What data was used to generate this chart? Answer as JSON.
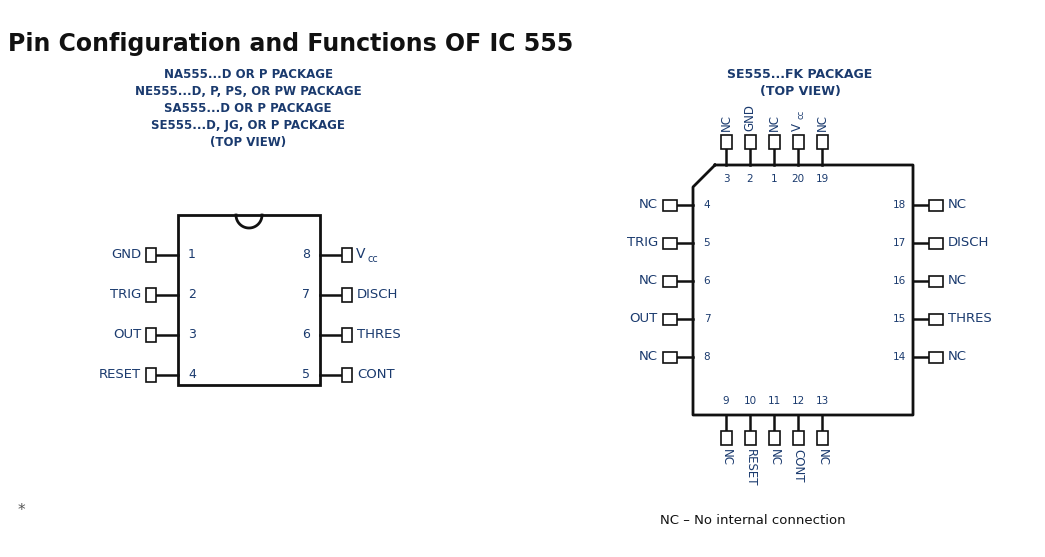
{
  "title": "Pin Configuration and Functions OF IC 555",
  "title_fontsize": 17,
  "bg_color": "#ffffff",
  "text_color": "#1a3a6e",
  "black": "#111111",
  "left_subtitle_lines": [
    "NA555...D OR P PACKAGE",
    "NE555...D, P, PS, OR PW PACKAGE",
    "SA555...D OR P PACKAGE",
    "SE555...D, JG, OR P PACKAGE",
    "(TOP VIEW)"
  ],
  "right_subtitle_lines": [
    "SE555...FK PACKAGE",
    "(TOP VIEW)"
  ],
  "left_pins_left": [
    {
      "num": "1",
      "name": "GND"
    },
    {
      "num": "2",
      "name": "TRIG"
    },
    {
      "num": "3",
      "name": "OUT"
    },
    {
      "num": "4",
      "name": "RESET"
    }
  ],
  "left_pins_right": [
    {
      "num": "8",
      "name": "Vcc",
      "vcc": true
    },
    {
      "num": "7",
      "name": "DISCH"
    },
    {
      "num": "6",
      "name": "THRES"
    },
    {
      "num": "5",
      "name": "CONT"
    }
  ],
  "right_pins_left": [
    {
      "num": "4",
      "name": "NC"
    },
    {
      "num": "5",
      "name": "TRIG"
    },
    {
      "num": "6",
      "name": "NC"
    },
    {
      "num": "7",
      "name": "OUT"
    },
    {
      "num": "8",
      "name": "NC"
    }
  ],
  "right_pins_right": [
    {
      "num": "18",
      "name": "NC"
    },
    {
      "num": "17",
      "name": "DISCH"
    },
    {
      "num": "16",
      "name": "NC"
    },
    {
      "num": "15",
      "name": "THRES"
    },
    {
      "num": "14",
      "name": "NC"
    }
  ],
  "right_pins_top": [
    {
      "num": "3",
      "name": "NC"
    },
    {
      "num": "2",
      "name": "GND"
    },
    {
      "num": "1",
      "name": "NC"
    },
    {
      "num": "20",
      "name": "Vcc",
      "vcc": true
    },
    {
      "num": "19",
      "name": "NC"
    }
  ],
  "right_pins_bottom": [
    {
      "num": "9",
      "name": "NC"
    },
    {
      "num": "10",
      "name": "RESET"
    },
    {
      "num": "11",
      "name": "NC"
    },
    {
      "num": "12",
      "name": "CONT"
    },
    {
      "num": "13",
      "name": "NC"
    }
  ],
  "footnote": "NC – No internal connection"
}
